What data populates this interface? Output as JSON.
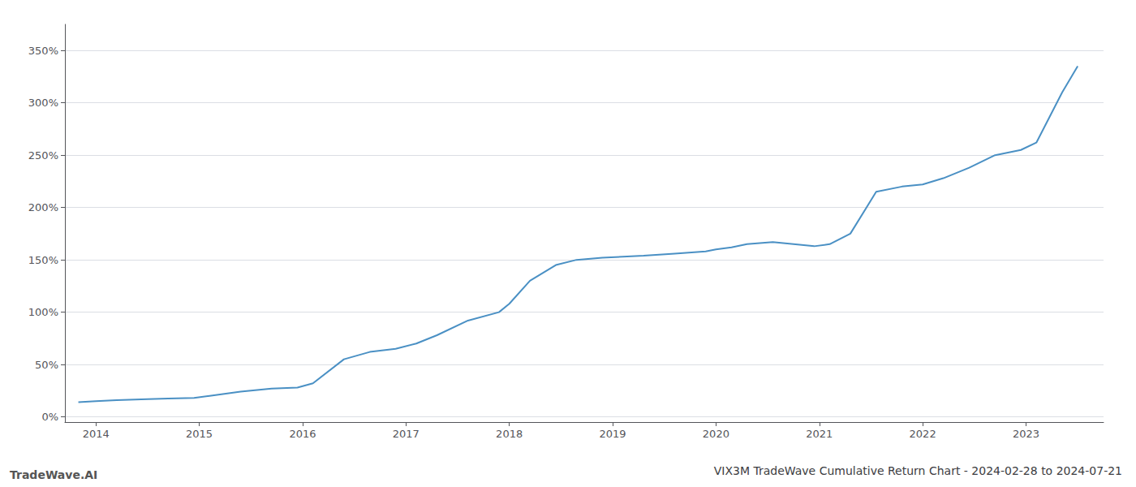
{
  "chart_data": {
    "type": "line",
    "title": "VIX3M TradeWave Cumulative Return Chart - 2024-02-28 to 2024-07-21",
    "annotations": [
      "TradeWave.AI"
    ],
    "color": "#4a90c4",
    "x": [
      2013.83,
      2014.0,
      2014.2,
      2014.5,
      2014.7,
      2014.95,
      2015.1,
      2015.4,
      2015.7,
      2015.95,
      2016.1,
      2016.4,
      2016.65,
      2016.9,
      2017.1,
      2017.3,
      2017.6,
      2017.9,
      2018.0,
      2018.2,
      2018.45,
      2018.65,
      2018.9,
      2019.1,
      2019.3,
      2019.6,
      2019.9,
      2020.0,
      2020.15,
      2020.3,
      2020.55,
      2020.75,
      2020.95,
      2021.1,
      2021.3,
      2021.55,
      2021.8,
      2022.0,
      2022.2,
      2022.45,
      2022.7,
      2022.95,
      2023.1,
      2023.35,
      2023.5
    ],
    "values": [
      14,
      15,
      16,
      17,
      17.5,
      18,
      20,
      24,
      27,
      28,
      32,
      55,
      62,
      65,
      70,
      78,
      92,
      100,
      108,
      130,
      145,
      150,
      152,
      153,
      154,
      156,
      158,
      160,
      162,
      165,
      167,
      165,
      163,
      165,
      175,
      215,
      220,
      222,
      228,
      238,
      250,
      255,
      262,
      310,
      335
    ],
    "xlim": [
      2013.7,
      2023.75
    ],
    "xticks": [
      2014,
      2015,
      2016,
      2017,
      2018,
      2019,
      2020,
      2021,
      2022,
      2023
    ],
    "ylim": [
      -5,
      375
    ],
    "yticks": [
      {
        "value": 0,
        "label": "0%"
      },
      {
        "value": 50,
        "label": "50%"
      },
      {
        "value": 100,
        "label": "100%"
      },
      {
        "value": 150,
        "label": "150%"
      },
      {
        "value": 200,
        "label": "200%"
      },
      {
        "value": 250,
        "label": "250%"
      },
      {
        "value": 300,
        "label": "300%"
      },
      {
        "value": 350,
        "label": "350%"
      }
    ],
    "grid": "y"
  }
}
